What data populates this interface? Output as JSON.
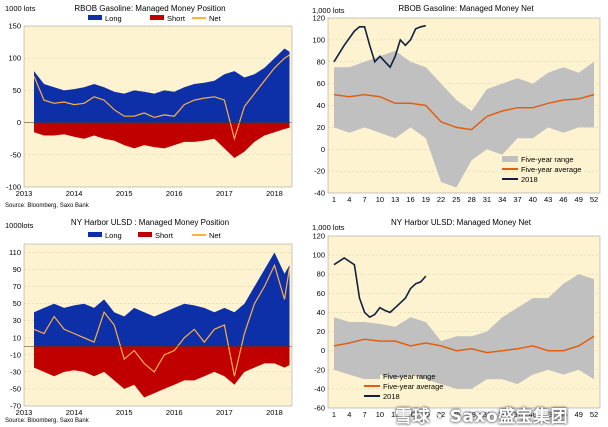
{
  "chart_data": [
    {
      "id": "rbob_position",
      "type": "area",
      "title": "RBOB Gasoline: Managed Money Position",
      "unit_label": "1000 lots",
      "source": "Source: Bloomberg, Saxo Bank",
      "legend": [
        "Long",
        "Short",
        "Net"
      ],
      "ylim": [
        -100,
        150
      ],
      "yticks": [
        "150",
        "100",
        "50",
        "0",
        "-50",
        "-100"
      ],
      "xticks": [
        "2013",
        "2014",
        "2015",
        "2016",
        "2017",
        "2018"
      ],
      "xrange": [
        2013.0,
        2018.35
      ],
      "x": [
        2013.2,
        2013.4,
        2013.6,
        2013.8,
        2014.0,
        2014.2,
        2014.4,
        2014.6,
        2014.8,
        2015.0,
        2015.2,
        2015.4,
        2015.6,
        2015.8,
        2016.0,
        2016.2,
        2016.4,
        2016.6,
        2016.8,
        2017.0,
        2017.2,
        2017.4,
        2017.6,
        2017.8,
        2018.0,
        2018.2,
        2018.3
      ],
      "series": [
        {
          "name": "Long",
          "color": "#0d2fa8",
          "values": [
            80,
            60,
            55,
            50,
            52,
            55,
            60,
            55,
            48,
            45,
            50,
            48,
            45,
            50,
            48,
            55,
            60,
            62,
            65,
            75,
            80,
            70,
            75,
            85,
            100,
            115,
            110
          ]
        },
        {
          "name": "Short",
          "color": "#c00000",
          "values": [
            -15,
            -20,
            -20,
            -18,
            -22,
            -25,
            -20,
            -25,
            -28,
            -35,
            -40,
            -35,
            -38,
            -40,
            -35,
            -30,
            -30,
            -28,
            -25,
            -40,
            -55,
            -45,
            -30,
            -20,
            -15,
            -10,
            -8
          ]
        },
        {
          "name": "Net",
          "color": "#ffb040",
          "values": [
            72,
            35,
            30,
            32,
            28,
            30,
            40,
            35,
            20,
            10,
            10,
            15,
            8,
            12,
            10,
            28,
            35,
            38,
            40,
            35,
            -25,
            25,
            45,
            65,
            85,
            100,
            105
          ]
        }
      ]
    },
    {
      "id": "rbob_net",
      "type": "line",
      "title": "RBOB Gasoline: Managed Money Net",
      "unit_label": "1,000 lots",
      "ylim": [
        -40,
        120
      ],
      "yticks": [
        "120",
        "100",
        "80",
        "60",
        "40",
        "20",
        "0",
        "-20",
        "-40"
      ],
      "xticks": [
        "1",
        "4",
        "7",
        "10",
        "13",
        "16",
        "19",
        "22",
        "25",
        "28",
        "31",
        "34",
        "37",
        "40",
        "43",
        "46",
        "49",
        "52"
      ],
      "x_range_weeks": [
        1,
        52
      ],
      "legend": [
        "Five-year range",
        "Five-year average",
        "2018"
      ],
      "weeks": [
        1,
        4,
        7,
        10,
        13,
        16,
        19,
        22,
        25,
        28,
        31,
        34,
        37,
        40,
        43,
        46,
        49,
        52
      ],
      "series": [
        {
          "name": "Five-year range (max)",
          "color": "#c0c0c0",
          "values": [
            75,
            75,
            80,
            85,
            90,
            80,
            75,
            60,
            45,
            35,
            55,
            60,
            65,
            60,
            70,
            75,
            70,
            80
          ]
        },
        {
          "name": "Five-year range (min)",
          "color": "#c0c0c0",
          "values": [
            20,
            15,
            20,
            15,
            10,
            20,
            10,
            -30,
            -35,
            -10,
            0,
            -5,
            10,
            10,
            20,
            15,
            20,
            20
          ]
        },
        {
          "name": "Five-year average",
          "color": "#e06010",
          "values": [
            50,
            48,
            50,
            48,
            42,
            42,
            40,
            25,
            20,
            18,
            30,
            35,
            38,
            38,
            42,
            45,
            46,
            50
          ]
        },
        {
          "name": "2018",
          "color": "#102040",
          "weeks": [
            1,
            3,
            5,
            6,
            7,
            8,
            9,
            10,
            11,
            12,
            13,
            14,
            15,
            16,
            17,
            18,
            19
          ],
          "values": [
            80,
            95,
            108,
            112,
            112,
            95,
            80,
            85,
            80,
            75,
            85,
            100,
            95,
            100,
            110,
            112,
            113
          ]
        }
      ]
    },
    {
      "id": "ulsd_position",
      "type": "area",
      "title": "NY Harbor ULSD : Managed Money Position",
      "unit_label": "1000lots",
      "source": "Source: Bloomberg, Saxo Bank",
      "legend": [
        "Long",
        "Short",
        "Net"
      ],
      "ylim": [
        -70,
        120
      ],
      "yticks": [
        "110",
        "90",
        "70",
        "50",
        "30",
        "10",
        "-10",
        "-30",
        "-50",
        "-70"
      ],
      "xticks": [
        "2013",
        "2014",
        "2015",
        "2016",
        "2017",
        "2018"
      ],
      "xrange": [
        2013.0,
        2018.35
      ],
      "x": [
        2013.2,
        2013.4,
        2013.6,
        2013.8,
        2014.0,
        2014.2,
        2014.4,
        2014.6,
        2014.8,
        2015.0,
        2015.2,
        2015.4,
        2015.6,
        2015.8,
        2016.0,
        2016.2,
        2016.4,
        2016.6,
        2016.8,
        2017.0,
        2017.2,
        2017.4,
        2017.6,
        2017.8,
        2018.0,
        2018.2,
        2018.3
      ],
      "series": [
        {
          "name": "Long",
          "color": "#0d2fa8",
          "values": [
            40,
            45,
            50,
            45,
            48,
            50,
            45,
            55,
            40,
            35,
            45,
            40,
            35,
            40,
            45,
            50,
            48,
            45,
            40,
            45,
            40,
            50,
            70,
            90,
            110,
            85,
            95
          ]
        },
        {
          "name": "Short",
          "color": "#c00000",
          "values": [
            -25,
            -30,
            -35,
            -30,
            -28,
            -30,
            -35,
            -30,
            -40,
            -50,
            -45,
            -60,
            -55,
            -50,
            -45,
            -40,
            -40,
            -35,
            -30,
            -35,
            -45,
            -30,
            -25,
            -20,
            -20,
            -25,
            -22
          ]
        },
        {
          "name": "Net",
          "color": "#ffb040",
          "values": [
            20,
            15,
            35,
            20,
            15,
            10,
            5,
            40,
            25,
            -15,
            -5,
            -20,
            -30,
            -10,
            -5,
            10,
            20,
            5,
            20,
            25,
            -35,
            15,
            50,
            70,
            95,
            55,
            92
          ]
        }
      ]
    },
    {
      "id": "ulsd_net",
      "type": "line",
      "title": "NY Harbor ULSD: Managed Money Net",
      "unit_label": "1,000 lots",
      "ylim": [
        -60,
        120
      ],
      "yticks": [
        "120",
        "100",
        "80",
        "60",
        "40",
        "20",
        "0",
        "-20",
        "-40",
        "-60"
      ],
      "xticks": [
        "1",
        "4",
        "7",
        "10",
        "13",
        "16",
        "19",
        "22",
        "25",
        "28",
        "31",
        "34",
        "37",
        "40",
        "43",
        "46",
        "49",
        "52"
      ],
      "x_range_weeks": [
        1,
        52
      ],
      "legend": [
        "Five-year range",
        "Five-year average",
        "2018"
      ],
      "weeks": [
        1,
        4,
        7,
        10,
        13,
        16,
        19,
        22,
        25,
        28,
        31,
        34,
        37,
        40,
        43,
        46,
        49,
        52
      ],
      "series": [
        {
          "name": "Five-year range (max)",
          "color": "#c0c0c0",
          "values": [
            35,
            30,
            30,
            28,
            25,
            35,
            30,
            10,
            15,
            15,
            20,
            35,
            45,
            55,
            55,
            70,
            80,
            75
          ]
        },
        {
          "name": "Five-year range (min)",
          "color": "#c0c0c0",
          "values": [
            -20,
            -25,
            -30,
            -25,
            -30,
            -25,
            -30,
            -35,
            -40,
            -40,
            -30,
            -30,
            -35,
            -25,
            -20,
            -25,
            -20,
            -30
          ]
        },
        {
          "name": "Five-year average",
          "color": "#e06010",
          "values": [
            5,
            8,
            12,
            10,
            10,
            5,
            8,
            5,
            0,
            2,
            -2,
            0,
            2,
            5,
            0,
            0,
            5,
            15
          ]
        },
        {
          "name": "2018",
          "color": "#102040",
          "weeks": [
            1,
            3,
            5,
            6,
            7,
            8,
            9,
            10,
            11,
            12,
            13,
            14,
            15,
            16,
            17,
            18,
            19
          ],
          "values": [
            90,
            97,
            90,
            55,
            40,
            35,
            38,
            45,
            42,
            40,
            45,
            50,
            55,
            65,
            70,
            72,
            78
          ]
        }
      ]
    }
  ],
  "watermark": "雪球 · Saxo盛宝集团"
}
